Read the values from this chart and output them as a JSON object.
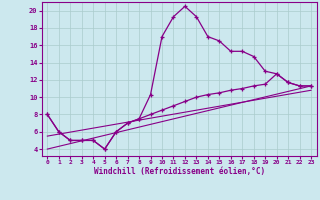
{
  "xlabel": "Windchill (Refroidissement éolien,°C)",
  "bg_color": "#cce8ee",
  "grid_color": "#aacccc",
  "line_color": "#880088",
  "xlim": [
    -0.5,
    23.5
  ],
  "ylim": [
    3.2,
    21.0
  ],
  "xticks": [
    0,
    1,
    2,
    3,
    4,
    5,
    6,
    7,
    8,
    9,
    10,
    11,
    12,
    13,
    14,
    15,
    16,
    17,
    18,
    19,
    20,
    21,
    22,
    23
  ],
  "yticks": [
    4,
    6,
    8,
    10,
    12,
    14,
    16,
    18,
    20
  ],
  "series1_x": [
    0,
    1,
    2,
    3,
    4,
    5,
    6,
    7,
    8,
    9,
    10,
    11,
    12,
    13,
    14,
    15,
    16,
    17,
    18,
    19,
    20,
    21,
    22,
    23
  ],
  "series1_y": [
    8,
    6,
    5,
    5,
    5,
    4,
    6,
    7,
    7.5,
    10.3,
    17,
    19.3,
    20.5,
    19.3,
    17,
    16.5,
    15.3,
    15.3,
    14.7,
    13,
    12.7,
    11.7,
    11.3,
    11.3
  ],
  "series2_x": [
    0,
    1,
    2,
    3,
    4,
    5,
    6,
    7,
    8,
    9,
    10,
    11,
    12,
    13,
    14,
    15,
    16,
    17,
    18,
    19,
    20,
    21,
    22,
    23
  ],
  "series2_y": [
    8,
    6,
    5,
    5,
    5,
    4,
    6,
    7,
    7.5,
    8.0,
    8.5,
    9.0,
    9.5,
    10.0,
    10.3,
    10.5,
    10.8,
    11.0,
    11.3,
    11.5,
    12.7,
    11.7,
    11.3,
    11.3
  ],
  "series3_x": [
    0,
    23
  ],
  "series3_y": [
    5.5,
    10.8
  ],
  "series4_x": [
    0,
    23
  ],
  "series4_y": [
    4.0,
    11.3
  ]
}
